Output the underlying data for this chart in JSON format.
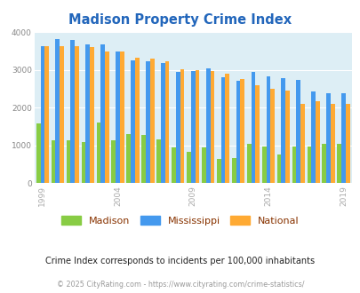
{
  "title": "Madison Property Crime Index",
  "title_color": "#2266bb",
  "subtitle": "Crime Index corresponds to incidents per 100,000 inhabitants",
  "footer": "© 2025 CityRating.com - https://www.cityrating.com/crime-statistics/",
  "years": [
    1999,
    2000,
    2001,
    2002,
    2003,
    2004,
    2005,
    2006,
    2007,
    2008,
    2009,
    2010,
    2011,
    2012,
    2013,
    2014,
    2015,
    2016,
    2017,
    2018,
    2019
  ],
  "madison": [
    1580,
    1130,
    1130,
    1090,
    1600,
    1130,
    1290,
    1270,
    1150,
    950,
    840,
    950,
    650,
    660,
    1040,
    980,
    760,
    980,
    960,
    1050,
    1050
  ],
  "mississippi": [
    3620,
    3820,
    3800,
    3680,
    3680,
    3480,
    3250,
    3220,
    3190,
    2950,
    2960,
    3050,
    2810,
    2720,
    2940,
    2830,
    2780,
    2730,
    2420,
    2390,
    2390
  ],
  "national": [
    3620,
    3640,
    3640,
    3610,
    3500,
    3480,
    3320,
    3300,
    3220,
    3010,
    3000,
    2970,
    2900,
    2760,
    2590,
    2490,
    2450,
    2100,
    2160,
    2100,
    2090
  ],
  "madison_color": "#88cc44",
  "mississippi_color": "#4499ee",
  "national_color": "#ffaa33",
  "bg_color": "#ddeef5",
  "ylim": [
    0,
    4000
  ],
  "yticks": [
    0,
    1000,
    2000,
    3000,
    4000
  ],
  "bar_width": 0.28,
  "legend_labels": [
    "Madison",
    "Mississippi",
    "National"
  ],
  "legend_label_color": "#883300",
  "subtitle_color": "#222222",
  "footer_color": "#999999",
  "xtick_years": [
    1999,
    2004,
    2009,
    2014,
    2019
  ]
}
